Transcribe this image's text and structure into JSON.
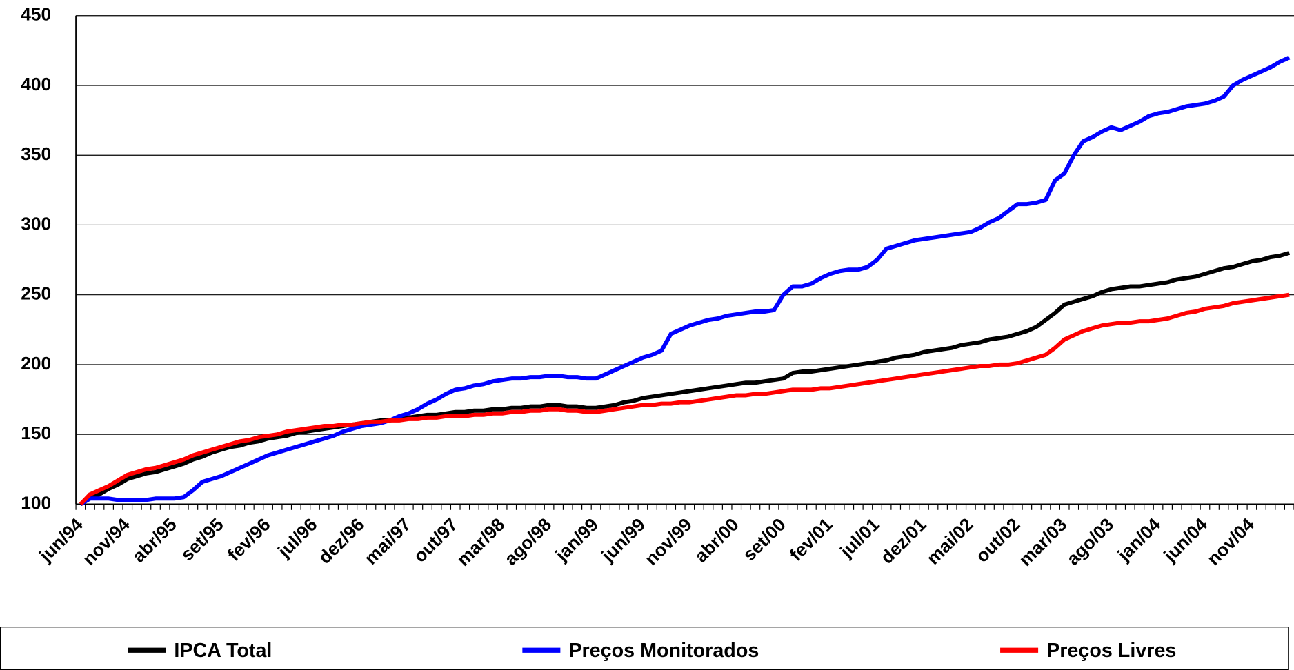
{
  "chart_data": {
    "type": "line",
    "categories": [
      "jun/94",
      null,
      null,
      null,
      null,
      "nov/94",
      null,
      null,
      null,
      null,
      "abr/95",
      null,
      null,
      null,
      null,
      "set/95",
      null,
      null,
      null,
      null,
      "fev/96",
      null,
      null,
      null,
      null,
      "jul/96",
      null,
      null,
      null,
      null,
      "dez/96",
      null,
      null,
      null,
      null,
      "mai/97",
      null,
      null,
      null,
      null,
      "out/97",
      null,
      null,
      null,
      null,
      "mar/98",
      null,
      null,
      null,
      null,
      "ago/98",
      null,
      null,
      null,
      null,
      "jan/99",
      null,
      null,
      null,
      null,
      "jun/99",
      null,
      null,
      null,
      null,
      "nov/99",
      null,
      null,
      null,
      null,
      "abr/00",
      null,
      null,
      null,
      null,
      "set/00",
      null,
      null,
      null,
      null,
      "fev/01",
      null,
      null,
      null,
      null,
      "jul/01",
      null,
      null,
      null,
      null,
      "dez/01",
      null,
      null,
      null,
      null,
      "mai/02",
      null,
      null,
      null,
      null,
      "out/02",
      null,
      null,
      null,
      null,
      "mar/03",
      null,
      null,
      null,
      null,
      "ago/03",
      null,
      null,
      null,
      null,
      "jan/04",
      null,
      null,
      null,
      null,
      "jun/04",
      null,
      null,
      null,
      null,
      "nov/04",
      null,
      null,
      null,
      null
    ],
    "series": [
      {
        "name": "IPCA Total",
        "color": "#000000",
        "values": [
          100,
          104,
          107,
          111,
          114,
          118,
          120,
          122,
          123,
          125,
          127,
          129,
          132,
          134,
          137,
          139,
          141,
          142,
          144,
          145,
          147,
          148,
          149,
          151,
          152,
          153,
          154,
          155,
          156,
          157,
          158,
          159,
          160,
          160,
          161,
          162,
          163,
          164,
          164,
          165,
          166,
          166,
          167,
          167,
          168,
          168,
          169,
          169,
          170,
          170,
          171,
          171,
          170,
          170,
          169,
          169,
          170,
          171,
          173,
          174,
          176,
          177,
          178,
          179,
          180,
          181,
          182,
          183,
          184,
          185,
          186,
          187,
          187,
          188,
          189,
          190,
          194,
          195,
          195,
          196,
          197,
          198,
          199,
          200,
          201,
          202,
          203,
          205,
          206,
          207,
          209,
          210,
          211,
          212,
          214,
          215,
          216,
          218,
          219,
          220,
          222,
          224,
          227,
          232,
          237,
          243,
          245,
          247,
          249,
          252,
          254,
          255,
          256,
          256,
          257,
          258,
          259,
          261,
          262,
          263,
          265,
          267,
          269,
          270,
          272,
          274,
          275,
          277,
          278,
          280
        ]
      },
      {
        "name": "Preços Monitorados",
        "color": "#0000ff",
        "values": [
          100,
          104,
          104,
          104,
          103,
          103,
          103,
          103,
          104,
          104,
          104,
          105,
          110,
          116,
          118,
          120,
          123,
          126,
          129,
          132,
          135,
          137,
          139,
          141,
          143,
          145,
          147,
          149,
          152,
          154,
          156,
          157,
          158,
          160,
          163,
          165,
          168,
          172,
          175,
          179,
          182,
          183,
          185,
          186,
          188,
          189,
          190,
          190,
          191,
          191,
          192,
          192,
          191,
          191,
          190,
          190,
          193,
          196,
          199,
          202,
          205,
          207,
          210,
          222,
          225,
          228,
          230,
          232,
          233,
          235,
          236,
          237,
          238,
          238,
          239,
          250,
          256,
          256,
          258,
          262,
          265,
          267,
          268,
          268,
          270,
          275,
          283,
          285,
          287,
          289,
          290,
          291,
          292,
          293,
          294,
          295,
          298,
          302,
          305,
          310,
          315,
          315,
          316,
          318,
          332,
          337,
          350,
          360,
          363,
          367,
          370,
          368,
          371,
          374,
          378,
          380,
          381,
          383,
          385,
          386,
          387,
          389,
          392,
          400,
          404,
          407,
          410,
          413,
          417,
          420
        ]
      },
      {
        "name": "Preços Livres",
        "color": "#ff0000",
        "values": [
          100,
          107,
          110,
          113,
          117,
          121,
          123,
          125,
          126,
          128,
          130,
          132,
          135,
          137,
          139,
          141,
          143,
          145,
          146,
          148,
          149,
          150,
          152,
          153,
          154,
          155,
          156,
          156,
          157,
          157,
          158,
          159,
          159,
          160,
          160,
          161,
          161,
          162,
          162,
          163,
          163,
          163,
          164,
          164,
          165,
          165,
          166,
          166,
          167,
          167,
          168,
          168,
          167,
          167,
          166,
          166,
          167,
          168,
          169,
          170,
          171,
          171,
          172,
          172,
          173,
          173,
          174,
          175,
          176,
          177,
          178,
          178,
          179,
          179,
          180,
          181,
          182,
          182,
          182,
          183,
          183,
          184,
          185,
          186,
          187,
          188,
          189,
          190,
          191,
          192,
          193,
          194,
          195,
          196,
          197,
          198,
          199,
          199,
          200,
          200,
          201,
          203,
          205,
          207,
          212,
          218,
          221,
          224,
          226,
          228,
          229,
          230,
          230,
          231,
          231,
          232,
          233,
          235,
          237,
          238,
          240,
          241,
          242,
          244,
          245,
          246,
          247,
          248,
          249,
          250
        ]
      }
    ],
    "ylim": [
      100,
      450
    ],
    "yticks": [
      100,
      150,
      200,
      250,
      300,
      350,
      400,
      450
    ],
    "grid": true,
    "legend": "bottom"
  }
}
